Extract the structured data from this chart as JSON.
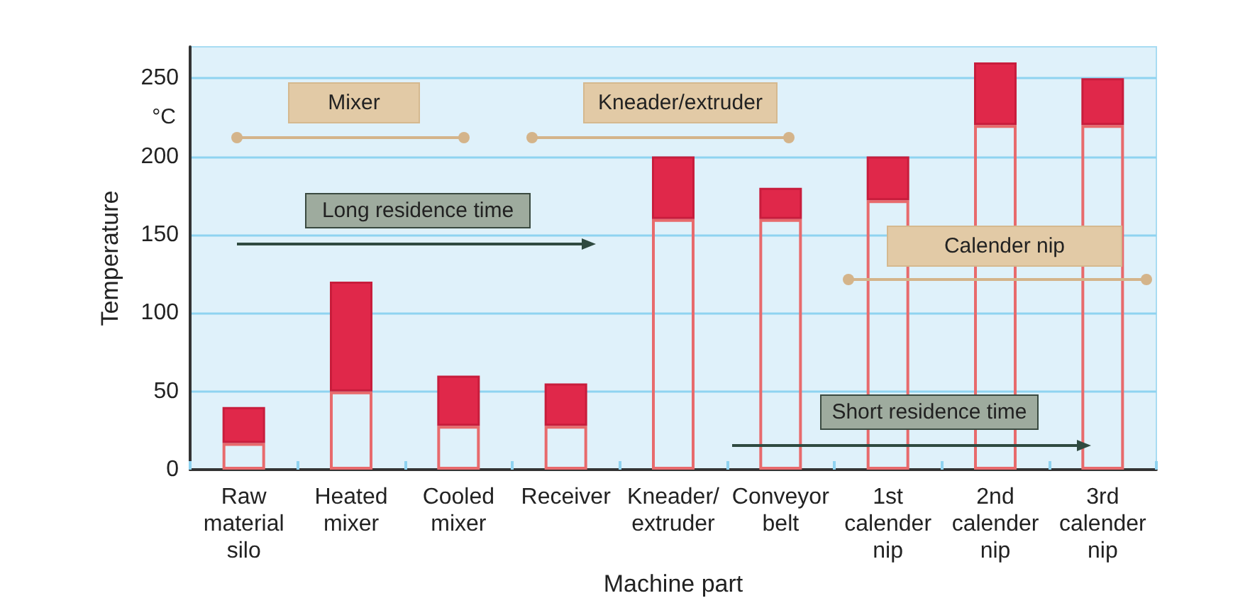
{
  "chart_data": {
    "type": "bar",
    "xlabel": "Machine part",
    "ylabel": "Temperature",
    "categories": [
      "Raw\nmaterial\nsilo",
      "Heated\nmixer",
      "Cooled\nmixer",
      "Receiver",
      "Kneader/\nextruder",
      "Conveyor\nbelt",
      "1st\ncalender\nnip",
      "2nd\ncalender\nnip",
      "3rd\ncalender\nnip"
    ],
    "stacked": true,
    "series": [
      {
        "color": "#e86a6c",
        "values": [
          17,
          50,
          28,
          28,
          160,
          160,
          172,
          220,
          220
        ]
      },
      {
        "color": "#e0284a",
        "values": [
          23,
          70,
          32,
          27,
          40,
          20,
          28,
          40,
          30
        ]
      }
    ],
    "ylim": [
      0,
      270
    ],
    "yticks": [
      0,
      50,
      100,
      150,
      200,
      250
    ],
    "grid": "y",
    "annotations": [
      "°C",
      "Mixer",
      "Kneader/extruder",
      "Long residence time",
      "Calender nip",
      "Short residence time"
    ]
  }
}
